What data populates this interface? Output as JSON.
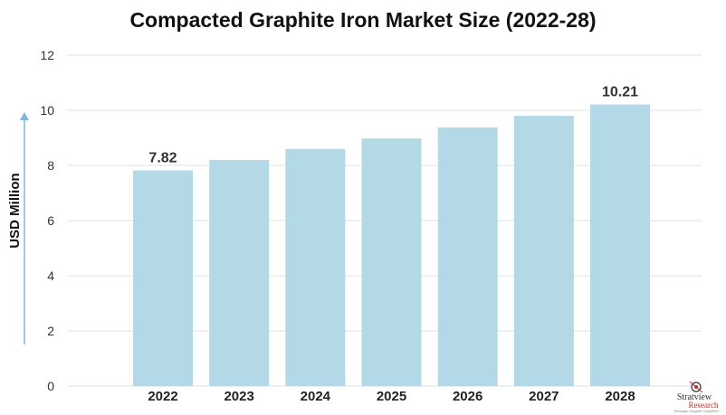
{
  "chart_data": {
    "type": "bar",
    "title": "Compacted Graphite Iron Market Size (2022-28)",
    "ylabel": "USD Million",
    "xlabel": "",
    "categories": [
      "2022",
      "2023",
      "2024",
      "2025",
      "2026",
      "2027",
      "2028"
    ],
    "values": [
      7.82,
      8.2,
      8.6,
      8.98,
      9.38,
      9.8,
      10.21
    ],
    "data_labels": [
      "7.82",
      "",
      "",
      "",
      "",
      "",
      "10.21"
    ],
    "ylim": [
      0,
      12
    ],
    "yticks": [
      "0",
      "2",
      "4",
      "6",
      "8",
      "10",
      "12"
    ],
    "grid": true,
    "legend": "none"
  },
  "logo": {
    "name": "Stratview",
    "sub": "Research",
    "tagline": "Strategic Insights Simplified"
  },
  "colors": {
    "bar": "#b3d8e6",
    "grid": "#e2e2e2",
    "axis_arrow": "#7fb8d4",
    "logo_accent": "#b5342a"
  }
}
